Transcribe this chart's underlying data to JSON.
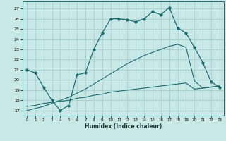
{
  "xlabel": "Humidex (Indice chaleur)",
  "background_color": "#c8e8e8",
  "grid_color": "#a0c8c8",
  "line_color": "#1a6b6b",
  "xlim": [
    -0.5,
    23.5
  ],
  "ylim": [
    16.5,
    27.7
  ],
  "yticks": [
    17,
    18,
    19,
    20,
    21,
    22,
    23,
    24,
    25,
    26,
    27
  ],
  "xticks": [
    0,
    1,
    2,
    3,
    4,
    5,
    6,
    7,
    8,
    9,
    10,
    11,
    12,
    13,
    14,
    15,
    16,
    17,
    18,
    19,
    20,
    21,
    22,
    23
  ],
  "line1_x": [
    0,
    1,
    2,
    3,
    4,
    5,
    6,
    7,
    8,
    9,
    10,
    11,
    12,
    13,
    14,
    15,
    16,
    17,
    18,
    19,
    20,
    21,
    22,
    23
  ],
  "line1_y": [
    21.0,
    20.7,
    19.3,
    18.0,
    17.0,
    17.5,
    20.5,
    20.7,
    23.0,
    24.6,
    26.0,
    26.0,
    25.9,
    25.7,
    26.0,
    26.7,
    26.4,
    27.1,
    25.1,
    24.6,
    23.2,
    21.7,
    19.8,
    19.3
  ],
  "line2_x": [
    0,
    1,
    2,
    3,
    4,
    5,
    6,
    7,
    8,
    9,
    10,
    11,
    12,
    13,
    14,
    15,
    16,
    17,
    18,
    19,
    20,
    21,
    22,
    23
  ],
  "line2_y": [
    17.4,
    17.5,
    17.7,
    17.8,
    17.9,
    18.0,
    18.2,
    18.3,
    18.5,
    18.6,
    18.8,
    18.9,
    19.0,
    19.1,
    19.2,
    19.3,
    19.4,
    19.5,
    19.6,
    19.7,
    19.1,
    19.2,
    19.3,
    19.4
  ],
  "line3_x": [
    0,
    1,
    2,
    3,
    4,
    5,
    6,
    7,
    8,
    9,
    10,
    11,
    12,
    13,
    14,
    15,
    16,
    17,
    18,
    19,
    20,
    21,
    22,
    23
  ],
  "line3_y": [
    17.0,
    17.2,
    17.4,
    17.7,
    18.0,
    18.3,
    18.7,
    19.1,
    19.6,
    20.1,
    20.6,
    21.1,
    21.6,
    22.0,
    22.4,
    22.7,
    23.0,
    23.3,
    23.5,
    23.2,
    19.9,
    19.2,
    19.3,
    19.4
  ]
}
